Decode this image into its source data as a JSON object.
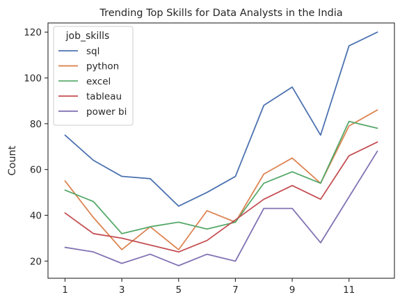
{
  "chart_data": {
    "type": "line",
    "title": "Trending Top Skills for Data Analysts in the India",
    "xlabel": "",
    "ylabel": "Count",
    "x": [
      1,
      2,
      3,
      4,
      5,
      6,
      7,
      8,
      9,
      10,
      11,
      12
    ],
    "x_ticks": [
      1,
      3,
      5,
      7,
      9,
      11
    ],
    "xlim": [
      0.4,
      12.6
    ],
    "y_ticks": [
      20,
      40,
      60,
      80,
      100,
      120
    ],
    "ylim": [
      12.5,
      124
    ],
    "grid": false,
    "legend": {
      "title": "job_skills",
      "placement": "top-left"
    },
    "series": [
      {
        "name": "sql",
        "color": "#4c72b0",
        "values": [
          75,
          64,
          57,
          56,
          44,
          50,
          57,
          88,
          96,
          75,
          114,
          120
        ]
      },
      {
        "name": "python",
        "color": "#dd8452",
        "values": [
          55,
          39,
          25,
          35,
          25,
          42,
          37,
          58,
          65,
          54,
          79,
          86
        ]
      },
      {
        "name": "excel",
        "color": "#55a868",
        "values": [
          51,
          46,
          32,
          35,
          37,
          34,
          37,
          54,
          59,
          54,
          81,
          78
        ]
      },
      {
        "name": "tableau",
        "color": "#c44e52",
        "values": [
          41,
          32,
          30,
          27,
          24,
          29,
          38,
          47,
          53,
          47,
          66,
          72
        ]
      },
      {
        "name": "power bi",
        "color": "#8172b3",
        "values": [
          26,
          24,
          19,
          23,
          18,
          23,
          20,
          43,
          43,
          28,
          48,
          68
        ]
      }
    ]
  }
}
